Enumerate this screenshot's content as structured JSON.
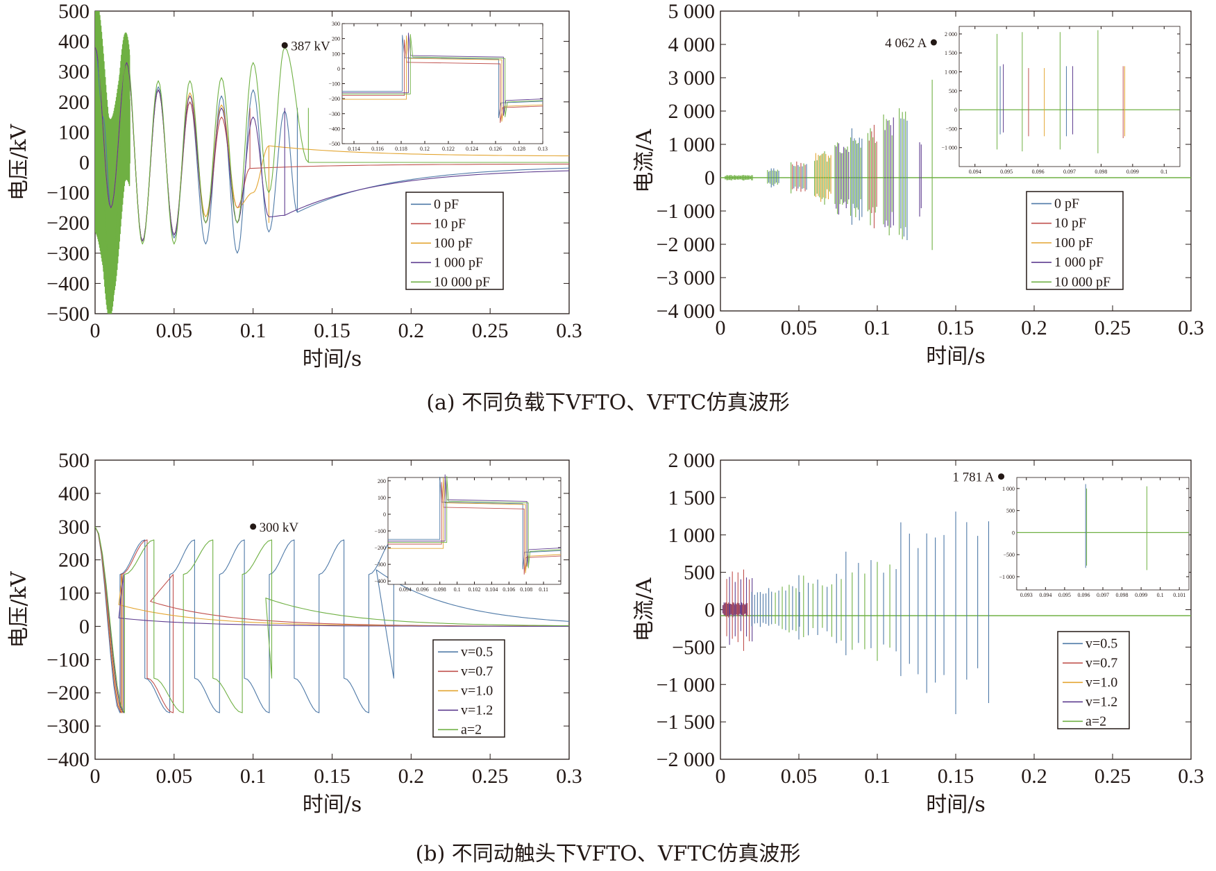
{
  "captions": {
    "a": "(a) 不同负载下VFTO、VFTC仿真波形",
    "b": "(b) 不同动触头下VFTO、VFTC仿真波形"
  },
  "chart_data": [
    {
      "id": "a-voltage",
      "type": "line",
      "xlabel": "时间/s",
      "ylabel": "电压/kV",
      "xlim": [
        0,
        0.3
      ],
      "ylim": [
        -500,
        500
      ],
      "xticks": [
        "0",
        "0.05",
        "0.1",
        "0.15",
        "0.2",
        "0.25",
        "0.3"
      ],
      "yticks": [
        "−500",
        "−400",
        "−300",
        "−200",
        "−100",
        "0",
        "100",
        "200",
        "300",
        "400",
        "500"
      ],
      "legend": {
        "position": "lower-right",
        "entries": [
          "0 pF",
          "10 pF",
          "100 pF",
          "1 000 pF",
          "10 000 pF"
        ]
      },
      "series": [
        {
          "name": "0 pF",
          "color": "#4e79a7",
          "final_breakdown_s": 0.128,
          "trapped_kV": -165,
          "points": [
            [
              0,
              380
            ],
            [
              0.005,
              150
            ],
            [
              0.01,
              -150
            ],
            [
              0.02,
              330
            ],
            [
              0.03,
              -260
            ],
            [
              0.04,
              250
            ],
            [
              0.05,
              -250
            ],
            [
              0.06,
              200
            ],
            [
              0.07,
              -270
            ],
            [
              0.08,
              220
            ],
            [
              0.09,
              -300
            ],
            [
              0.1,
              240
            ],
            [
              0.11,
              -230
            ],
            [
              0.12,
              170
            ],
            [
              0.128,
              -165
            ],
            [
              0.3,
              -10
            ]
          ]
        },
        {
          "name": "10 pF",
          "color": "#c0504d",
          "final_breakdown_s": 0.098,
          "trapped_kV": -20,
          "points": [
            [
              0,
              380
            ],
            [
              0.01,
              -150
            ],
            [
              0.02,
              330
            ],
            [
              0.03,
              -260
            ],
            [
              0.04,
              240
            ],
            [
              0.05,
              -240
            ],
            [
              0.06,
              200
            ],
            [
              0.07,
              -200
            ],
            [
              0.08,
              150
            ],
            [
              0.09,
              -150
            ],
            [
              0.098,
              -20
            ],
            [
              0.3,
              -5
            ]
          ]
        },
        {
          "name": "100 pF",
          "color": "#e3a531",
          "final_breakdown_s": 0.11,
          "trapped_kV": 55,
          "points": [
            [
              0,
              380
            ],
            [
              0.01,
              -150
            ],
            [
              0.02,
              330
            ],
            [
              0.03,
              -260
            ],
            [
              0.04,
              240
            ],
            [
              0.05,
              -240
            ],
            [
              0.06,
              230
            ],
            [
              0.07,
              -180
            ],
            [
              0.08,
              190
            ],
            [
              0.09,
              -150
            ],
            [
              0.1,
              -100
            ],
            [
              0.11,
              55
            ],
            [
              0.3,
              20
            ]
          ]
        },
        {
          "name": "1 000 pF",
          "color": "#5e3c8f",
          "final_breakdown_s": 0.12,
          "trapped_kV": -175,
          "points": [
            [
              0,
              380
            ],
            [
              0.01,
              -150
            ],
            [
              0.02,
              330
            ],
            [
              0.03,
              -260
            ],
            [
              0.04,
              240
            ],
            [
              0.05,
              -240
            ],
            [
              0.06,
              220
            ],
            [
              0.07,
              -200
            ],
            [
              0.08,
              180
            ],
            [
              0.09,
              -200
            ],
            [
              0.1,
              150
            ],
            [
              0.11,
              -180
            ],
            [
              0.12,
              -175
            ],
            [
              0.3,
              -20
            ]
          ]
        },
        {
          "name": "10 000 pF",
          "color": "#6fb043",
          "final_breakdown_s": 0.135,
          "trapped_kV": 0,
          "points": [
            [
              0,
              440
            ],
            [
              0.01,
              -420
            ],
            [
              0.02,
              350
            ],
            [
              0.03,
              -270
            ],
            [
              0.04,
              270
            ],
            [
              0.05,
              -270
            ],
            [
              0.06,
              270
            ],
            [
              0.07,
              -200
            ],
            [
              0.08,
              280
            ],
            [
              0.09,
              -200
            ],
            [
              0.1,
              330
            ],
            [
              0.11,
              -100
            ],
            [
              0.12,
              380
            ],
            [
              0.135,
              0
            ],
            [
              0.3,
              0
            ]
          ]
        }
      ],
      "annotation": {
        "label": "387 kV",
        "x": 0.12,
        "y": 387
      },
      "inset": {
        "xlim": [
          0.113,
          0.13
        ],
        "ylim": [
          -500,
          300
        ],
        "xticks": [
          "0.114",
          "0.116",
          "0.118",
          "0.12",
          "0.122",
          "0.124",
          "0.126",
          "0.128",
          "0.13"
        ],
        "yticks": [
          "−500",
          "−400",
          "−300",
          "−200",
          "−100",
          "0",
          "100",
          "200",
          "300"
        ]
      }
    },
    {
      "id": "a-current",
      "type": "line",
      "xlabel": "时间/s",
      "ylabel": "电流/A",
      "xlim": [
        0,
        0.3
      ],
      "ylim": [
        -4000,
        5000
      ],
      "xticks": [
        "0",
        "0.05",
        "0.1",
        "0.15",
        "0.2",
        "0.25",
        "0.3"
      ],
      "yticks": [
        "−4 000",
        "−3 000",
        "−2 000",
        "−1 000",
        "0",
        "1 000",
        "2 000",
        "3 000",
        "4 000",
        "5 000"
      ],
      "legend": {
        "position": "lower-right",
        "entries": [
          "0 pF",
          "10 pF",
          "100 pF",
          "1 000 pF",
          "10 000 pF"
        ]
      },
      "annotation": {
        "label": "4 062 A",
        "x": 0.136,
        "y": 4062
      },
      "inset": {
        "xlim": [
          0.0935,
          0.1005
        ],
        "ylim": [
          -1500,
          2200
        ],
        "xticks": [
          "0.094",
          "0.095",
          "0.096",
          "0.097",
          "0.098",
          "0.099",
          "0.1"
        ],
        "yticks": [
          "−1 000",
          "−500",
          "0",
          "500",
          "1 000",
          "1 500",
          "2 000"
        ]
      }
    },
    {
      "id": "b-voltage",
      "type": "line",
      "xlabel": "时间/s",
      "ylabel": "电压/kV",
      "xlim": [
        0,
        0.3
      ],
      "ylim": [
        -400,
        500
      ],
      "xticks": [
        "0",
        "0.05",
        "0.1",
        "0.15",
        "0.2",
        "0.25",
        "0.3"
      ],
      "yticks": [
        "−400",
        "−300",
        "−200",
        "−100",
        "0",
        "100",
        "200",
        "300",
        "400",
        "500"
      ],
      "legend": {
        "position": "lower-right",
        "entries": [
          "v=0.5",
          "v=0.7",
          "v=1.0",
          "v=1.2",
          "a=2"
        ]
      },
      "series": [
        {
          "name": "v=0.5",
          "color": "#4e79a7",
          "final_breakdown_s": 0.178,
          "trapped_kV": 170
        },
        {
          "name": "v=0.7",
          "color": "#c0504d",
          "final_breakdown_s": 0.035,
          "trapped_kV": 75
        },
        {
          "name": "v=1.0",
          "color": "#e3a531",
          "final_breakdown_s": 0.015,
          "trapped_kV": 65
        },
        {
          "name": "v=1.2",
          "color": "#5e3c8f",
          "final_breakdown_s": 0.015,
          "trapped_kV": 25
        },
        {
          "name": "a=2",
          "color": "#6fb043",
          "final_breakdown_s": 0.108,
          "trapped_kV": 85
        }
      ],
      "annotation": {
        "label": "300 kV",
        "x": 0.1,
        "y": 300
      },
      "inset": {
        "xlim": [
          0.092,
          0.112
        ],
        "ylim": [
          -420,
          220
        ],
        "xticks": [
          "0.094",
          "0.096",
          "0.098",
          "0.1",
          "0.102",
          "0.104",
          "0.106",
          "0.108",
          "0.11"
        ],
        "yticks": [
          "−400",
          "−300",
          "−200",
          "−100",
          "0",
          "100",
          "200"
        ]
      }
    },
    {
      "id": "b-current",
      "type": "line",
      "xlabel": "时间/s",
      "ylabel": "电流/A",
      "xlim": [
        0,
        0.3
      ],
      "ylim": [
        -2000,
        2000
      ],
      "xticks": [
        "0",
        "0.05",
        "0.1",
        "0.15",
        "0.2",
        "0.25",
        "0.3"
      ],
      "yticks": [
        "−2 000",
        "−1 500",
        "−1 000",
        "−500",
        "0",
        "500",
        "1 000",
        "1 500",
        "2 000"
      ],
      "legend": {
        "position": "lower-right",
        "entries": [
          "v=0.5",
          "v=0.7",
          "v=1.0",
          "v=1.2",
          "a=2"
        ]
      },
      "annotation": {
        "label": "1 781 A",
        "x": 0.179,
        "y": 1781
      },
      "inset": {
        "xlim": [
          0.0925,
          0.1015
        ],
        "ylim": [
          -1300,
          1250
        ],
        "xticks": [
          "0.093",
          "0.094",
          "0.095",
          "0.096",
          "0.097",
          "0.098",
          "0.099",
          "0.1",
          "0.101"
        ],
        "yticks": [
          "−1 000",
          "−500",
          "0",
          "500",
          "1 000"
        ]
      }
    }
  ]
}
